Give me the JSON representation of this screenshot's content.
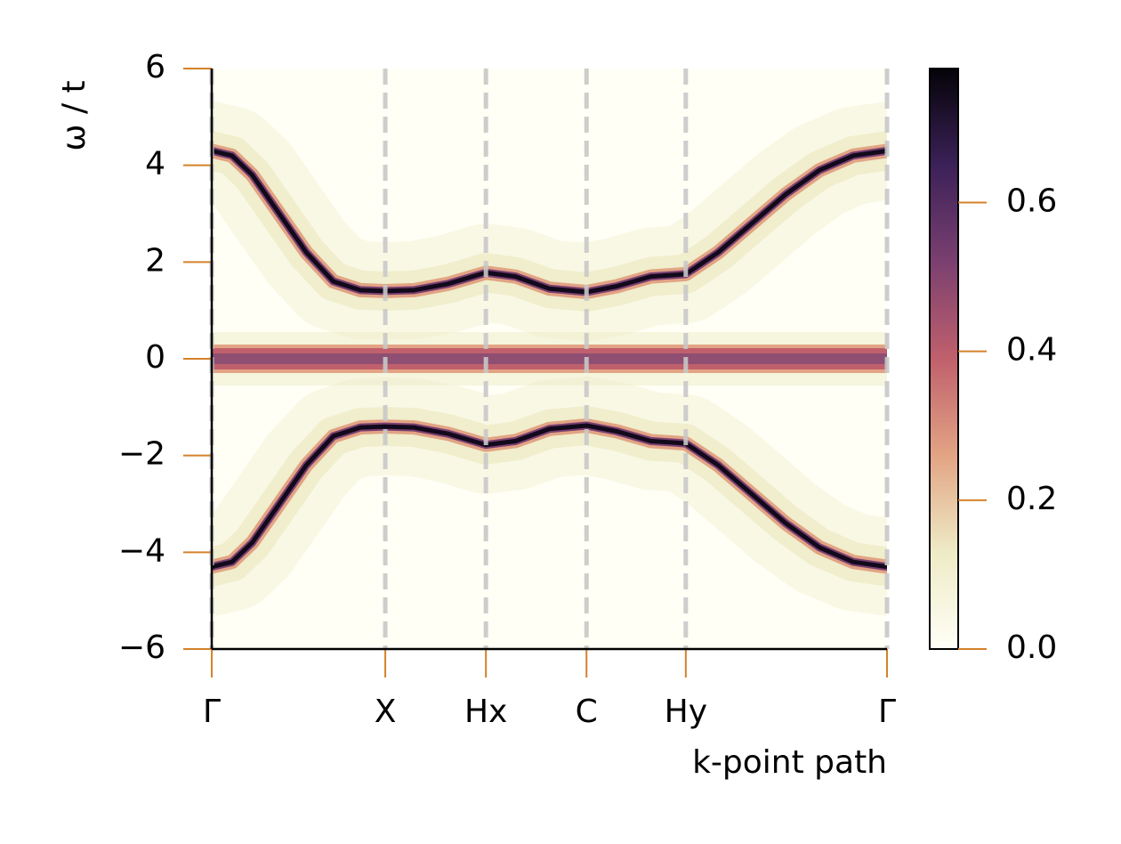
{
  "chart_data": {
    "type": "spectral",
    "xlabel": "k-point path",
    "ylabel": "ω / t",
    "x": [
      0,
      0.03,
      0.06,
      0.1,
      0.14,
      0.18,
      0.22,
      0.257,
      0.3,
      0.35,
      0.406,
      0.45,
      0.5,
      0.555,
      0.6,
      0.65,
      0.702,
      0.75,
      0.8,
      0.85,
      0.9,
      0.95,
      1
    ],
    "series": [
      {
        "color": "#120a1c",
        "values": [
          4.3,
          4.2,
          3.8,
          3.0,
          2.2,
          1.6,
          1.42,
          1.4,
          1.42,
          1.55,
          1.78,
          1.7,
          1.45,
          1.38,
          1.5,
          1.7,
          1.75,
          2.2,
          2.8,
          3.4,
          3.9,
          4.2,
          4.3
        ]
      },
      {
        "color": "#8e4f72",
        "values": [
          0,
          0,
          0,
          0,
          0,
          0,
          0,
          0,
          0,
          0,
          0,
          0,
          0,
          0,
          0,
          0,
          0,
          0,
          0,
          0,
          0,
          0,
          0
        ]
      },
      {
        "color": "#120a1c",
        "values": [
          -4.3,
          -4.2,
          -3.8,
          -3.0,
          -2.2,
          -1.6,
          -1.42,
          -1.4,
          -1.42,
          -1.55,
          -1.78,
          -1.7,
          -1.45,
          -1.38,
          -1.5,
          -1.7,
          -1.75,
          -2.2,
          -2.8,
          -3.4,
          -3.9,
          -4.2,
          -4.3
        ]
      }
    ],
    "xlim": [
      0,
      1
    ],
    "xticks": [
      {
        "value": 0,
        "label": "Γ"
      },
      {
        "value": 0.257,
        "label": "X"
      },
      {
        "value": 0.406,
        "label": "Hx"
      },
      {
        "value": 0.555,
        "label": "C"
      },
      {
        "value": 0.702,
        "label": "Hy"
      },
      {
        "value": 1,
        "label": "Γ"
      }
    ],
    "ylim": [
      -6,
      6
    ],
    "yticks": [
      {
        "value": -6,
        "label": "−6"
      },
      {
        "value": -4,
        "label": "−4"
      },
      {
        "value": -2,
        "label": "−2"
      },
      0,
      2,
      4,
      6
    ],
    "grid": true,
    "colormap": [
      "#fffff6",
      "#eeebc6",
      "#e2a484",
      "#c0606c",
      "#7b4070",
      "#3b2158",
      "#050308"
    ],
    "clim": [
      0,
      0.78
    ],
    "cticks": [
      {
        "value": 0,
        "label": "0.0"
      },
      0.2,
      0.4,
      0.6
    ]
  }
}
